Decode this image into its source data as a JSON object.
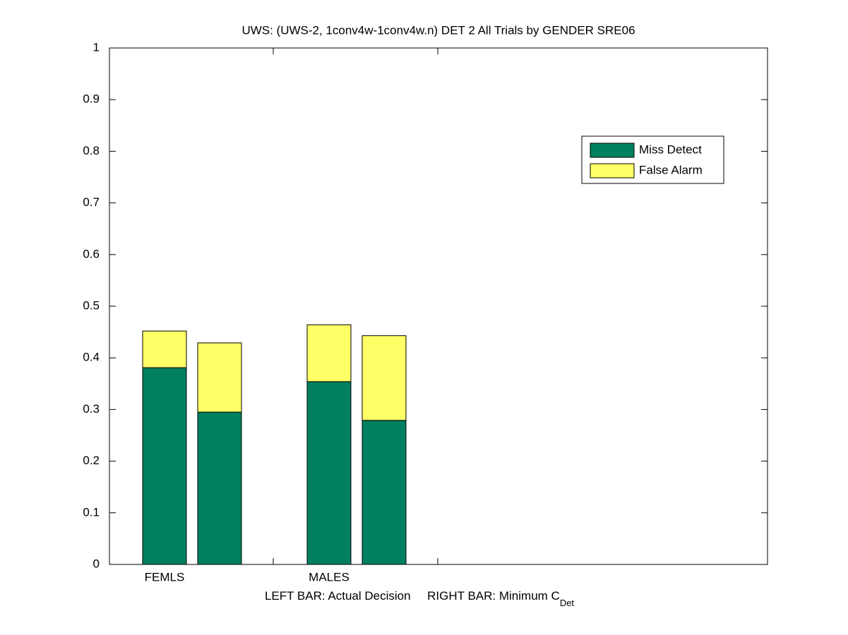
{
  "chart_data": {
    "type": "stacked_bar",
    "title": "UWS: (UWS-2, 1conv4w-1conv4w.n) DET 2 All Trials by GENDER SRE06",
    "categories": [
      "FEMLS",
      null,
      "MALES",
      null
    ],
    "series": [
      {
        "name": "Miss Detect",
        "color": "#00805f",
        "values": [
          0.381,
          0.295,
          0.354,
          0.279
        ]
      },
      {
        "name": "False Alarm",
        "color": "#ffff66",
        "values": [
          0.071,
          0.134,
          0.11,
          0.164
        ]
      }
    ],
    "xlabel": "LEFT BAR: Actual Decision     RIGHT BAR: Minimum C",
    "xlabel_subscript": "Det",
    "ylim": [
      0,
      1
    ],
    "yticks": [
      0,
      0.1,
      0.2,
      0.3,
      0.4,
      0.5,
      0.6,
      0.7,
      0.8,
      0.9,
      1
    ],
    "legend": "upper-right"
  }
}
